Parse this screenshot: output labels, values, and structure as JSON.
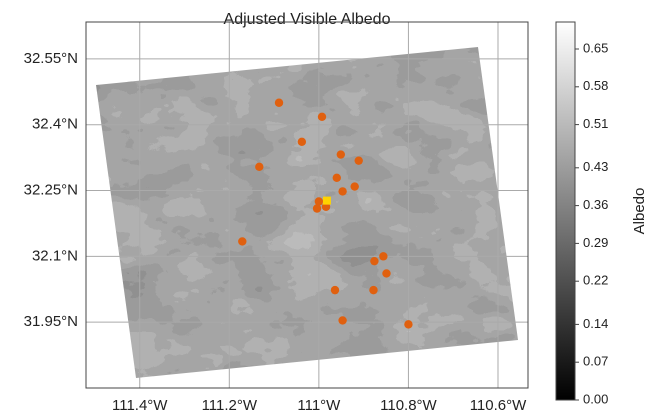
{
  "chart_data": {
    "type": "scatter",
    "title": "Adjusted Visible Albedo",
    "xlim": [
      -111.52,
      -110.533
    ],
    "ylim": [
      31.8,
      32.634
    ],
    "xticks": [
      {
        "value": -111.4,
        "label": "111.4°W"
      },
      {
        "value": -111.2,
        "label": "111.2°W"
      },
      {
        "value": -111.0,
        "label": "111°W"
      },
      {
        "value": -110.8,
        "label": "110.8°W"
      },
      {
        "value": -110.6,
        "label": "110.6°W"
      }
    ],
    "yticks": [
      {
        "value": 31.95,
        "label": "31.95°N"
      },
      {
        "value": 32.1,
        "label": "32.1°N"
      },
      {
        "value": 32.25,
        "label": "32.25°N"
      },
      {
        "value": 32.4,
        "label": "32.4°N"
      },
      {
        "value": 32.55,
        "label": "32.55°N"
      }
    ],
    "grid": true,
    "series": [
      {
        "color": "#e0600f",
        "x": [
          -111.089,
          -110.993,
          -111.038,
          -111.133,
          -110.951,
          -110.911,
          -110.96,
          -110.947,
          -110.92,
          -111.0,
          -110.984,
          -111.004,
          -111.171,
          -110.876,
          -110.856,
          -110.849,
          -110.964,
          -110.878,
          -110.947,
          -110.8
        ],
        "values": [
          32.45,
          32.418,
          32.361,
          32.304,
          32.332,
          32.318,
          32.279,
          32.248,
          32.259,
          32.225,
          32.213,
          32.209,
          32.134,
          32.089,
          32.1,
          32.061,
          32.023,
          32.023,
          31.954,
          31.945
        ]
      }
    ],
    "highlight": {
      "x": -110.982,
      "y": 32.227,
      "color": "#ffd400"
    },
    "colorbar": {
      "label": "Albedo",
      "clim": [
        0,
        0.7
      ],
      "ticks": [
        {
          "value": 0,
          "label": "0.00"
        },
        0.07,
        0.14,
        0.22,
        0.29,
        0.36,
        0.43,
        0.51,
        0.58,
        0.65
      ]
    }
  }
}
